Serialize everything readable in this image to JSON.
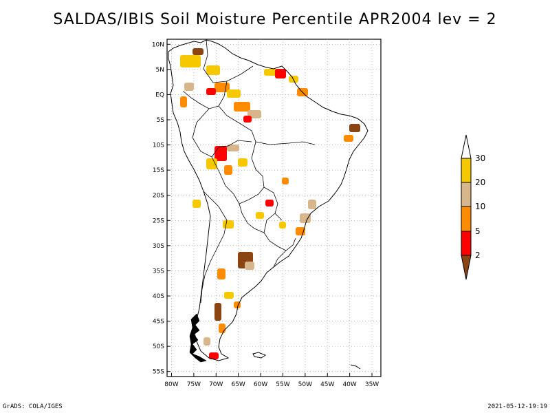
{
  "title": "SALDAS/IBIS Soil Moisture Percentile APR2004 lev = 2",
  "footer": {
    "left": "GrADS: COLA/IGES",
    "right": "2021-05-12-19:19"
  },
  "map": {
    "region": "South America",
    "lat_labels": [
      "10N",
      "5N",
      "EQ",
      "5S",
      "10S",
      "15S",
      "20S",
      "25S",
      "30S",
      "35S",
      "40S",
      "45S",
      "50S",
      "55S"
    ],
    "lon_labels": [
      "80W",
      "75W",
      "70W",
      "65W",
      "60W",
      "55W",
      "50W",
      "45W",
      "40W",
      "35W"
    ],
    "lat_values": [
      10,
      5,
      0,
      -5,
      -10,
      -15,
      -20,
      -25,
      -30,
      -35,
      -40,
      -45,
      -50,
      -55
    ],
    "lon_values": [
      -80,
      -75,
      -70,
      -65,
      -60,
      -55,
      -50,
      -45,
      -40,
      -35
    ],
    "lat_range": [
      -56,
      11
    ],
    "lon_range": [
      -81,
      -33
    ]
  },
  "legend": {
    "ticks": [
      "30",
      "20",
      "10",
      "5",
      "2"
    ],
    "bins": [
      {
        "range": ">30",
        "color": "#ffffff"
      },
      {
        "range": "20-30",
        "color": "#f5c800"
      },
      {
        "range": "10-20",
        "color": "#d6b68a"
      },
      {
        "range": "5-10",
        "color": "#ff8c00"
      },
      {
        "range": "2-5",
        "color": "#ff0000"
      },
      {
        "range": "<2",
        "color": "#8b4513"
      }
    ]
  },
  "colors": {
    "yellow": "#f5c800",
    "tan": "#d6b68a",
    "orange": "#ff8c00",
    "red": "#ff0000",
    "brown": "#8b4513"
  }
}
